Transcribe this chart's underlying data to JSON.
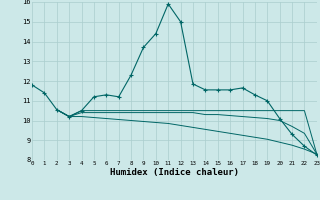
{
  "xlabel": "Humidex (Indice chaleur)",
  "bg_color": "#cce8e8",
  "line_color": "#006666",
  "grid_color": "#aacece",
  "xlim": [
    0,
    23
  ],
  "ylim": [
    8,
    16
  ],
  "xticks": [
    0,
    1,
    2,
    3,
    4,
    5,
    6,
    7,
    8,
    9,
    10,
    11,
    12,
    13,
    14,
    15,
    16,
    17,
    18,
    19,
    20,
    21,
    22,
    23
  ],
  "yticks": [
    8,
    9,
    10,
    11,
    12,
    13,
    14,
    15,
    16
  ],
  "series1_x": [
    0,
    1,
    2,
    3,
    4,
    5,
    6,
    7,
    8,
    9,
    10,
    11,
    12,
    13,
    14,
    15,
    16,
    17,
    18,
    19,
    20,
    21,
    22,
    23
  ],
  "series1_y": [
    11.8,
    11.4,
    10.55,
    10.2,
    10.5,
    11.2,
    11.3,
    11.2,
    12.3,
    13.7,
    14.4,
    15.9,
    15.0,
    11.85,
    11.55,
    11.55,
    11.55,
    11.65,
    11.3,
    11.0,
    10.1,
    9.3,
    8.7,
    8.25
  ],
  "series2_x": [
    2,
    3,
    4,
    5,
    6,
    7,
    8,
    9,
    10,
    11,
    12,
    13,
    14,
    15,
    16,
    17,
    18,
    19,
    20,
    21,
    22,
    23
  ],
  "series2_y": [
    10.55,
    10.2,
    10.5,
    10.5,
    10.5,
    10.5,
    10.5,
    10.5,
    10.5,
    10.5,
    10.5,
    10.5,
    10.5,
    10.5,
    10.5,
    10.5,
    10.5,
    10.5,
    10.5,
    10.5,
    10.5,
    8.3
  ],
  "series3_x": [
    2,
    3,
    4,
    5,
    6,
    7,
    8,
    9,
    10,
    11,
    12,
    13,
    14,
    15,
    16,
    17,
    18,
    19,
    20,
    21,
    22,
    23
  ],
  "series3_y": [
    10.55,
    10.2,
    10.4,
    10.4,
    10.4,
    10.4,
    10.4,
    10.4,
    10.4,
    10.4,
    10.4,
    10.4,
    10.3,
    10.3,
    10.25,
    10.2,
    10.15,
    10.1,
    10.0,
    9.7,
    9.35,
    8.3
  ],
  "series4_x": [
    2,
    3,
    4,
    5,
    6,
    7,
    8,
    9,
    10,
    11,
    12,
    13,
    14,
    15,
    16,
    17,
    18,
    19,
    20,
    21,
    22,
    23
  ],
  "series4_y": [
    10.55,
    10.2,
    10.2,
    10.15,
    10.1,
    10.05,
    10.0,
    9.95,
    9.9,
    9.85,
    9.75,
    9.65,
    9.55,
    9.45,
    9.35,
    9.25,
    9.15,
    9.05,
    8.9,
    8.75,
    8.55,
    8.3
  ]
}
